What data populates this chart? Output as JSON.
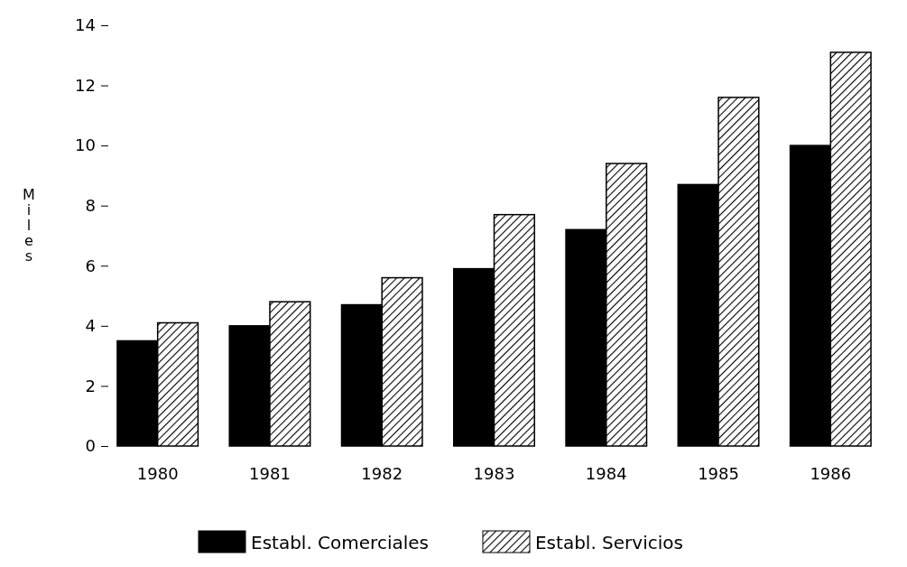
{
  "chart_data": {
    "type": "bar",
    "ylabel": "Miles",
    "categories": [
      "1980",
      "1981",
      "1982",
      "1983",
      "1984",
      "1985",
      "1986"
    ],
    "series": [
      {
        "name": "Establ. Comerciales",
        "color": "#000000",
        "values": [
          3.5,
          4.0,
          4.7,
          5.9,
          7.2,
          8.7,
          10.0
        ]
      },
      {
        "name": "Establ. Servicios",
        "color": "#000000",
        "values": [
          4.1,
          4.8,
          5.6,
          7.7,
          9.4,
          11.6,
          13.1
        ]
      }
    ],
    "ylim": [
      0,
      14
    ],
    "yticks": [
      0,
      2,
      4,
      6,
      8,
      10,
      12,
      14
    ],
    "grid": false,
    "legend": "bottom"
  }
}
